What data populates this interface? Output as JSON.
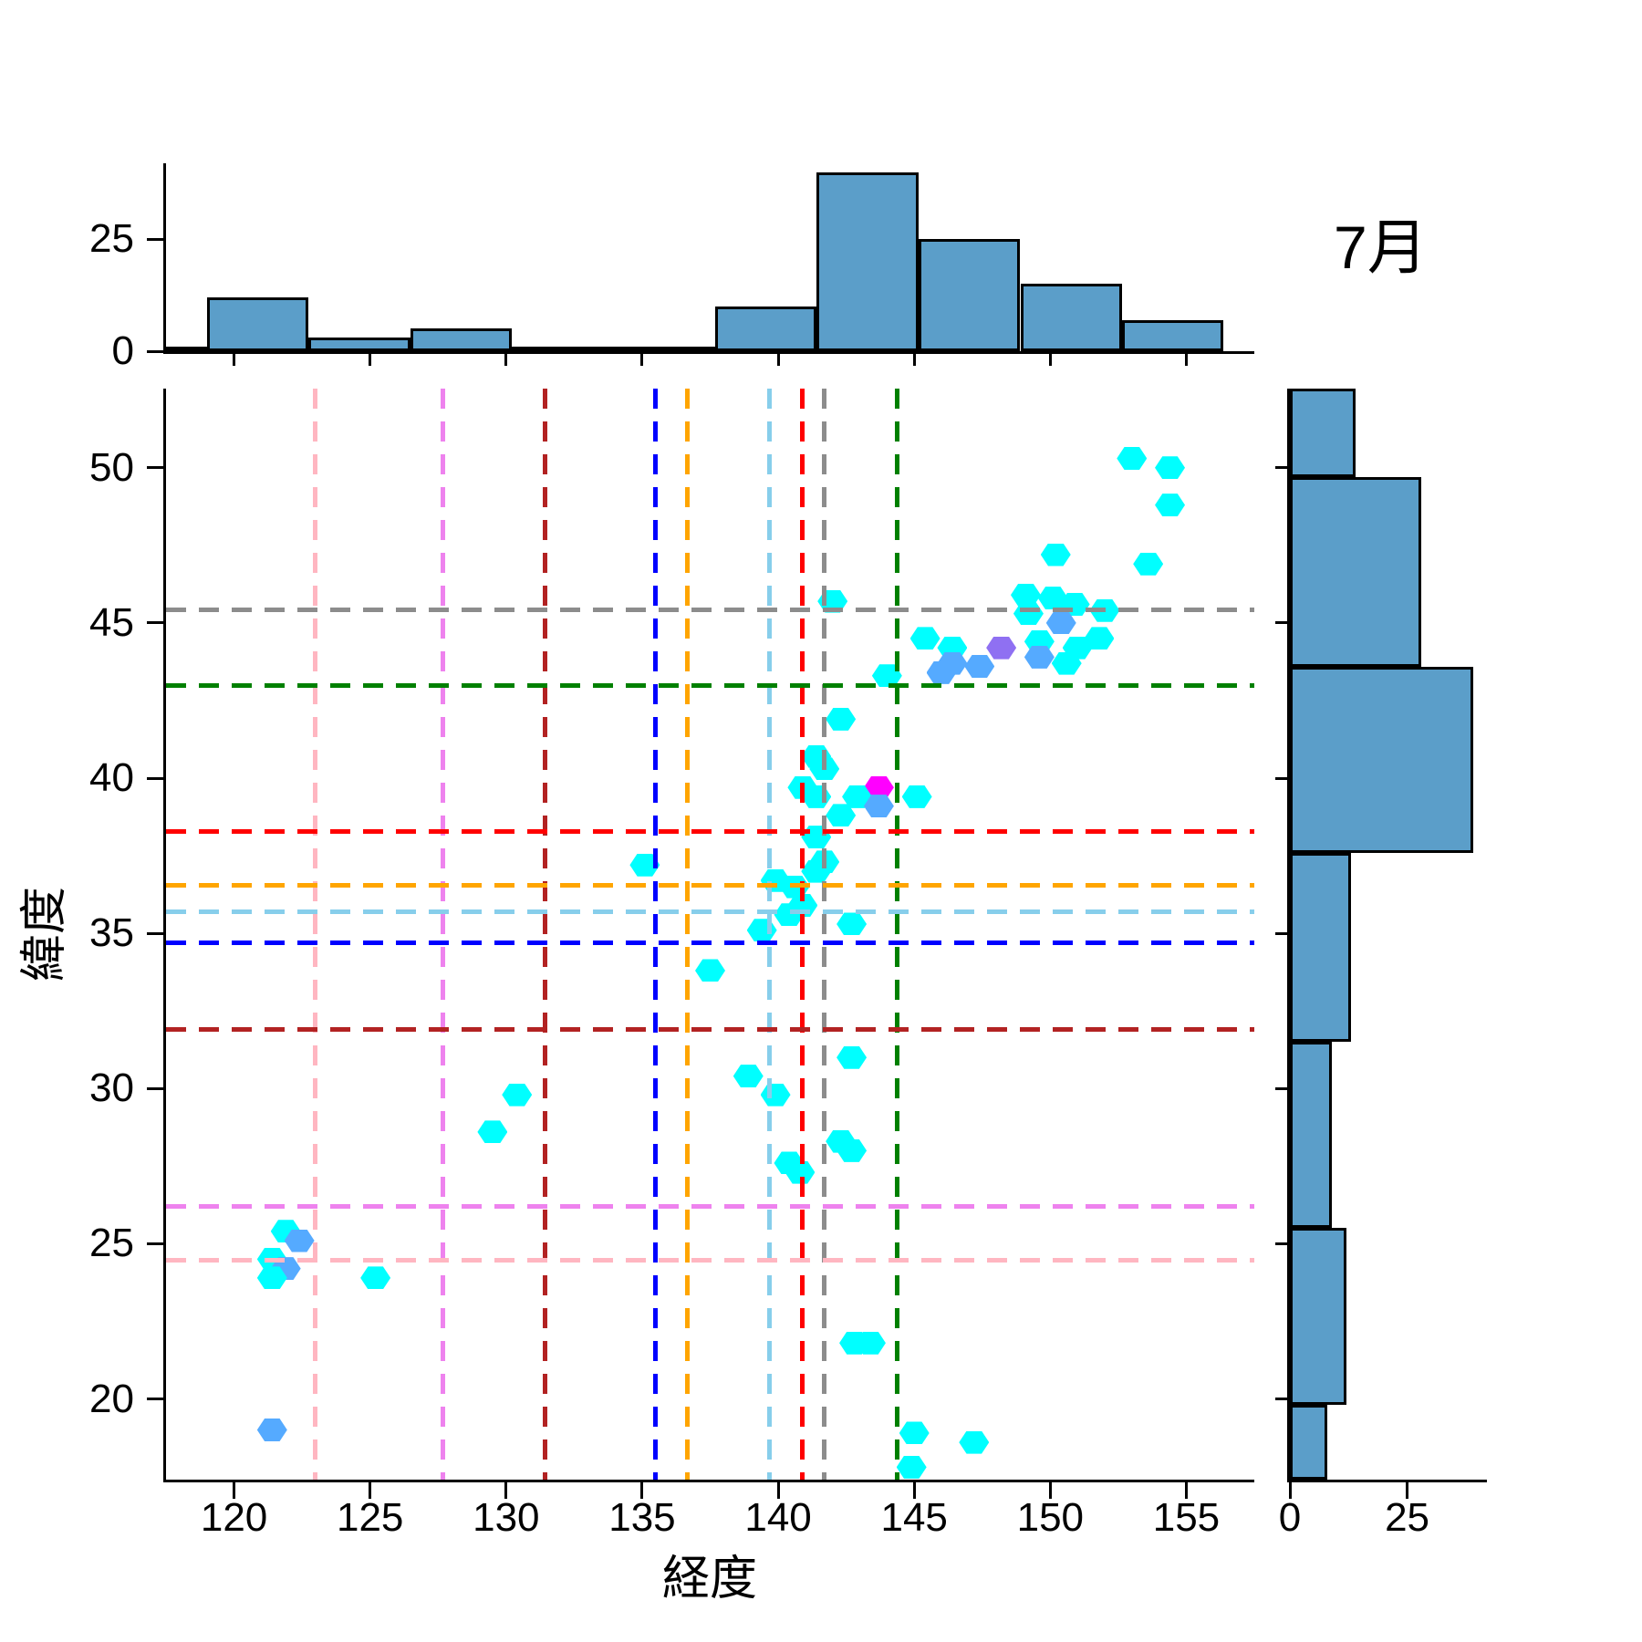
{
  "title": "7月",
  "axes_labels": {
    "x": "経度",
    "y": "緯度"
  },
  "chart_data": {
    "type": "hexbin_joint",
    "title": "7月",
    "xlabel": "経度",
    "ylabel": "緯度",
    "xlim": [
      117.5,
      157.5
    ],
    "ylim": [
      17.4,
      52.55
    ],
    "x_ticks": [
      120,
      125,
      130,
      135,
      140,
      145,
      150,
      155
    ],
    "y_ticks": [
      20,
      25,
      30,
      35,
      40,
      45,
      50
    ],
    "grid": false,
    "bar_fill": "#5b9ec9",
    "hex_colors": {
      "1": "#00FFFF",
      "2": "#55AAFF",
      "3": "#8F70F2",
      "4": "#FF00FF"
    },
    "hexes": [
      [
        153.0,
        50.3,
        1
      ],
      [
        154.4,
        50.0,
        1
      ],
      [
        154.4,
        48.8,
        1
      ],
      [
        150.2,
        47.2,
        1
      ],
      [
        153.6,
        46.9,
        1
      ],
      [
        142.0,
        45.7,
        1
      ],
      [
        149.1,
        45.9,
        1
      ],
      [
        150.1,
        45.8,
        1
      ],
      [
        149.2,
        45.3,
        1
      ],
      [
        150.9,
        45.6,
        1
      ],
      [
        152.0,
        45.4,
        1
      ],
      [
        150.4,
        45.0,
        2
      ],
      [
        151.8,
        44.5,
        1
      ],
      [
        151.0,
        44.2,
        1
      ],
      [
        150.6,
        43.7,
        1
      ],
      [
        149.6,
        44.4,
        1
      ],
      [
        148.2,
        44.2,
        3
      ],
      [
        149.6,
        43.9,
        2
      ],
      [
        147.4,
        43.6,
        2
      ],
      [
        146.4,
        44.2,
        1
      ],
      [
        146.4,
        43.7,
        2
      ],
      [
        146.0,
        43.4,
        2
      ],
      [
        145.4,
        44.5,
        1
      ],
      [
        144.0,
        43.3,
        1
      ],
      [
        142.3,
        41.9,
        1
      ],
      [
        141.4,
        40.7,
        1
      ],
      [
        141.7,
        40.3,
        1
      ],
      [
        140.9,
        39.7,
        1
      ],
      [
        141.4,
        39.4,
        1
      ],
      [
        143.7,
        39.7,
        4
      ],
      [
        142.9,
        39.4,
        1
      ],
      [
        143.7,
        39.1,
        2
      ],
      [
        145.1,
        39.4,
        1
      ],
      [
        142.3,
        38.8,
        1
      ],
      [
        141.4,
        38.1,
        1
      ],
      [
        141.7,
        37.3,
        1
      ],
      [
        141.4,
        37.0,
        1
      ],
      [
        135.1,
        37.2,
        1
      ],
      [
        139.9,
        36.7,
        1
      ],
      [
        140.6,
        36.5,
        1
      ],
      [
        140.9,
        35.9,
        1
      ],
      [
        140.4,
        35.6,
        1
      ],
      [
        139.4,
        35.1,
        1
      ],
      [
        142.7,
        35.3,
        1
      ],
      [
        137.5,
        33.8,
        1
      ],
      [
        142.7,
        31.0,
        1
      ],
      [
        138.9,
        30.4,
        1
      ],
      [
        139.9,
        29.8,
        1
      ],
      [
        130.4,
        29.8,
        1
      ],
      [
        129.5,
        28.6,
        1
      ],
      [
        142.3,
        28.3,
        1
      ],
      [
        142.7,
        28.0,
        1
      ],
      [
        140.4,
        27.6,
        1
      ],
      [
        140.8,
        27.3,
        1
      ],
      [
        121.9,
        25.4,
        1
      ],
      [
        122.4,
        25.1,
        2
      ],
      [
        121.4,
        24.5,
        1
      ],
      [
        121.9,
        24.2,
        2
      ],
      [
        121.4,
        23.9,
        1
      ],
      [
        125.2,
        23.9,
        1
      ],
      [
        142.8,
        21.8,
        1
      ],
      [
        143.4,
        21.8,
        1
      ],
      [
        121.4,
        19.0,
        2
      ],
      [
        145.0,
        18.9,
        1
      ],
      [
        147.2,
        18.6,
        1
      ],
      [
        144.9,
        17.8,
        1
      ]
    ],
    "vlines": [
      {
        "color": "#FFB6C1",
        "x": 122.99
      },
      {
        "color": "#EE82EE",
        "x": 127.68
      },
      {
        "color": "#B22222",
        "x": 131.42
      },
      {
        "color": "#0000FF",
        "x": 135.5
      },
      {
        "color": "#FFA500",
        "x": 136.65
      },
      {
        "color": "#87CEEB",
        "x": 139.69
      },
      {
        "color": "#FF0000",
        "x": 140.87
      },
      {
        "color": "#8C8C8C",
        "x": 141.68
      },
      {
        "color": "#008000",
        "x": 144.37
      }
    ],
    "hlines": [
      {
        "color": "#8C8C8C",
        "y": 45.42
      },
      {
        "color": "#008000",
        "y": 42.98
      },
      {
        "color": "#FF0000",
        "y": 38.27
      },
      {
        "color": "#FFA500",
        "y": 36.56
      },
      {
        "color": "#87CEEB",
        "y": 35.69
      },
      {
        "color": "#0000FF",
        "y": 34.69
      },
      {
        "color": "#B22222",
        "y": 31.91
      },
      {
        "color": "#EE82EE",
        "y": 26.21
      },
      {
        "color": "#FFB6C1",
        "y": 24.47
      }
    ],
    "top_hist": {
      "ylim": [
        0,
        42
      ],
      "y_ticks": [
        0,
        25
      ],
      "bars": [
        [
          117.5,
          119.0,
          1
        ],
        [
          119.0,
          122.74,
          12
        ],
        [
          122.74,
          126.48,
          3
        ],
        [
          126.48,
          130.21,
          5
        ],
        [
          130.21,
          133.95,
          1
        ],
        [
          133.95,
          137.69,
          1
        ],
        [
          137.69,
          141.42,
          10
        ],
        [
          141.42,
          145.16,
          40
        ],
        [
          145.16,
          148.9,
          25
        ],
        [
          148.9,
          152.63,
          15
        ],
        [
          152.63,
          156.37,
          7
        ]
      ]
    },
    "right_hist": {
      "xlim": [
        0,
        42
      ],
      "x_ticks": [
        0,
        25
      ],
      "bars": [
        [
          52.55,
          49.7,
          14
        ],
        [
          49.7,
          43.6,
          28
        ],
        [
          43.6,
          37.6,
          39
        ],
        [
          37.6,
          31.5,
          13
        ],
        [
          31.5,
          25.5,
          9
        ],
        [
          25.5,
          19.8,
          12
        ],
        [
          19.8,
          17.4,
          8
        ]
      ]
    }
  }
}
